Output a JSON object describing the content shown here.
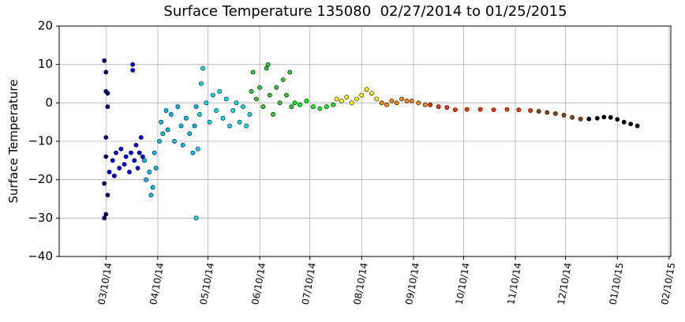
{
  "chart_data": {
    "type": "scatter",
    "title": "Surface Temperature 135080  02/27/2014 to 01/25/2015",
    "y_label": "Surface Temperature",
    "xlim": [
      "2014-02-10",
      "2015-02-11"
    ],
    "ylim": [
      -40,
      20
    ],
    "grid": true,
    "xticks": [
      {
        "value": "2014-03-10",
        "label": "03/10/14"
      },
      {
        "value": "2014-04-10",
        "label": "04/10/14"
      },
      {
        "value": "2014-05-10",
        "label": "05/10/14"
      },
      {
        "value": "2014-06-10",
        "label": "06/10/14"
      },
      {
        "value": "2014-07-10",
        "label": "07/10/14"
      },
      {
        "value": "2014-08-10",
        "label": "08/10/14"
      },
      {
        "value": "2014-09-10",
        "label": "09/10/14"
      },
      {
        "value": "2014-10-10",
        "label": "10/10/14"
      },
      {
        "value": "2014-11-10",
        "label": "11/10/14"
      },
      {
        "value": "2014-12-10",
        "label": "12/10/14"
      },
      {
        "value": "2015-01-10",
        "label": "01/10/15"
      },
      {
        "value": "2015-02-10",
        "label": "02/10/15"
      }
    ],
    "yticks": [
      {
        "value": -40,
        "label": "−40"
      },
      {
        "value": -30,
        "label": "−30"
      },
      {
        "value": -20,
        "label": "−20"
      },
      {
        "value": -10,
        "label": "−10"
      },
      0,
      10,
      20
    ],
    "series": [
      {
        "color": "#00008b",
        "x": [
          "2014-03-09",
          "2014-03-09",
          "2014-03-10",
          "2014-03-10",
          "2014-03-11",
          "2014-03-11",
          "2014-03-10",
          "2014-03-10",
          "2014-03-11",
          "2014-03-09",
          "2014-03-10"
        ],
        "values": [
          11,
          -30,
          -29,
          3,
          -24,
          -1,
          -9,
          -14,
          2.5,
          -21,
          8
        ]
      },
      {
        "color": "#0000ff",
        "x": [
          "2014-03-12",
          "2014-03-14",
          "2014-03-15",
          "2014-03-16",
          "2014-03-18",
          "2014-03-19",
          "2014-03-21",
          "2014-03-22",
          "2014-03-24",
          "2014-03-25",
          "2014-03-26",
          "2014-03-26",
          "2014-03-27",
          "2014-03-28",
          "2014-03-29",
          "2014-03-30",
          "2014-03-31",
          "2014-04-01"
        ],
        "values": [
          -18,
          -15,
          -19,
          -13,
          -17,
          -12,
          -16,
          -14,
          -18,
          -13,
          10,
          8.5,
          -15,
          -11,
          -17,
          -13,
          -9,
          -14
        ]
      },
      {
        "color": "#00bfff",
        "x": [
          "2014-04-02",
          "2014-04-03",
          "2014-04-05",
          "2014-04-06",
          "2014-04-07",
          "2014-04-08",
          "2014-04-09",
          "2014-04-11",
          "2014-04-12",
          "2014-04-13",
          "2014-04-15",
          "2014-04-16",
          "2014-04-18",
          "2014-04-20",
          "2014-04-22",
          "2014-04-24",
          "2014-04-25",
          "2014-04-27",
          "2014-04-29",
          "2014-05-01",
          "2014-05-02",
          "2014-05-03"
        ],
        "values": [
          -15,
          -20,
          -18,
          -24,
          -22,
          -13,
          -17,
          -10,
          -5,
          -8,
          -2,
          -7,
          -3,
          -10,
          -1,
          -6,
          -11,
          -4,
          -8,
          -13,
          -6,
          -1
        ]
      },
      {
        "color": "#00e5ee",
        "x": [
          "2014-05-03",
          "2014-05-04",
          "2014-05-05",
          "2014-05-06",
          "2014-05-07",
          "2014-05-09",
          "2014-05-11",
          "2014-05-13",
          "2014-05-15",
          "2014-05-17",
          "2014-05-19",
          "2014-05-21",
          "2014-05-23",
          "2014-05-25",
          "2014-05-27",
          "2014-05-29",
          "2014-05-31",
          "2014-06-02",
          "2014-06-04"
        ],
        "values": [
          -30,
          -12,
          -3,
          5,
          9,
          0,
          -5,
          2,
          -2,
          3,
          -4,
          1,
          -6,
          -2,
          0,
          -5,
          -1,
          -6,
          -3
        ]
      },
      {
        "color": "#32cd32",
        "x": [
          "2014-06-05",
          "2014-06-06",
          "2014-06-08",
          "2014-06-10",
          "2014-06-12",
          "2014-06-14",
          "2014-06-15",
          "2014-06-16",
          "2014-06-18",
          "2014-06-20",
          "2014-06-22",
          "2014-06-24",
          "2014-06-26",
          "2014-06-28",
          "2014-06-29"
        ],
        "values": [
          3,
          8,
          1,
          4,
          -1,
          9,
          10,
          2,
          -3,
          4,
          0,
          6,
          2,
          8,
          -1
        ]
      },
      {
        "color": "#00ff00",
        "x": [
          "2014-07-01",
          "2014-07-04",
          "2014-07-08",
          "2014-07-12",
          "2014-07-16",
          "2014-07-20",
          "2014-07-24"
        ],
        "values": [
          0,
          -0.5,
          0.5,
          -1,
          -1.5,
          -1,
          -0.5
        ]
      },
      {
        "color": "#ffff00",
        "x": [
          "2014-07-26",
          "2014-07-29",
          "2014-08-01",
          "2014-08-04",
          "2014-08-07",
          "2014-08-10",
          "2014-08-13",
          "2014-08-16",
          "2014-08-19"
        ],
        "values": [
          1,
          0.5,
          1.5,
          0,
          1,
          2,
          3.5,
          2.5,
          1
        ]
      },
      {
        "color": "#ff8c00",
        "x": [
          "2014-08-22",
          "2014-08-25",
          "2014-08-28",
          "2014-08-31",
          "2014-09-03",
          "2014-09-06",
          "2014-09-09",
          "2014-09-13",
          "2014-09-17"
        ],
        "values": [
          0,
          -0.5,
          0.5,
          0,
          1,
          0.5,
          0.5,
          0,
          -0.5
        ]
      },
      {
        "color": "#ff3300",
        "x": [
          "2014-09-20",
          "2014-09-25",
          "2014-09-30",
          "2014-10-05",
          "2014-10-12",
          "2014-10-20",
          "2014-10-28",
          "2014-11-05",
          "2014-11-12",
          "2014-11-19"
        ],
        "values": [
          -0.5,
          -1,
          -1.2,
          -1.8,
          -1.7,
          -1.7,
          -1.8,
          -1.7,
          -1.8,
          -2
        ]
      },
      {
        "color": "#8b4513",
        "x": [
          "2014-11-24",
          "2014-11-29",
          "2014-12-04",
          "2014-12-09",
          "2014-12-14",
          "2014-12-19"
        ],
        "values": [
          -2.2,
          -2.5,
          -2.8,
          -3.2,
          -3.8,
          -4.2
        ]
      },
      {
        "color": "#000000",
        "x": [
          "2014-12-24",
          "2014-12-29",
          "2015-01-02",
          "2015-01-06",
          "2015-01-10",
          "2015-01-14",
          "2015-01-18",
          "2015-01-22"
        ],
        "values": [
          -4.2,
          -4,
          -3.7,
          -3.8,
          -4.3,
          -5,
          -5.5,
          -6
        ]
      }
    ]
  }
}
